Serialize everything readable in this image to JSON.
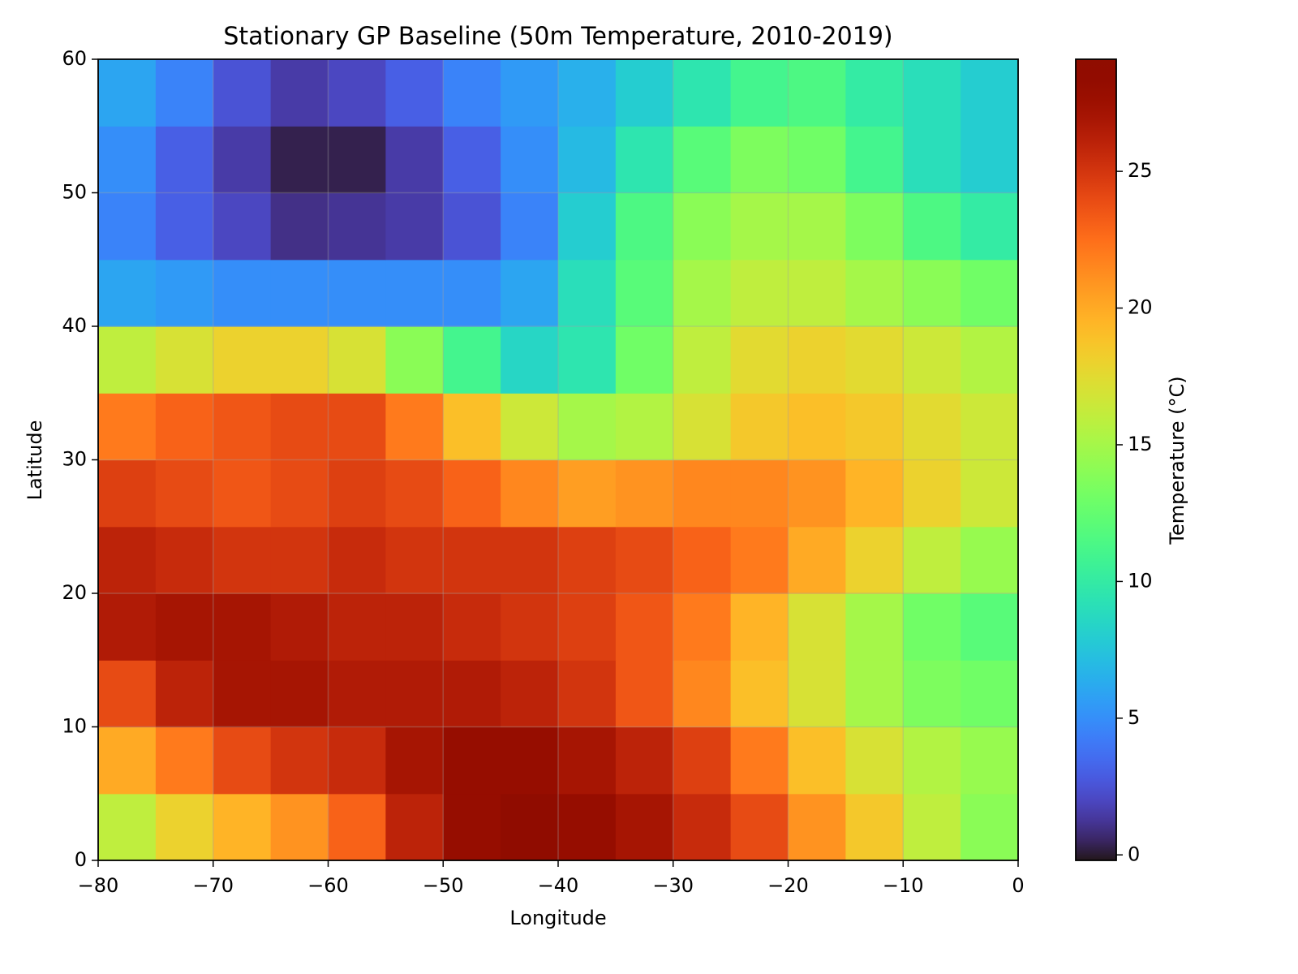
{
  "chart_data": {
    "type": "heatmap",
    "title": "Stationary GP Baseline (50m Temperature, 2010-2019)",
    "xlabel": "Longitude",
    "ylabel": "Latitude",
    "colorbar_label": "Temperature (°C)",
    "colormap": "turbo",
    "grid": true,
    "xlim": [
      -80,
      0
    ],
    "ylim": [
      0,
      60
    ],
    "zlim": [
      -0.2,
      29.1
    ],
    "xticks": [
      {
        "value": -80,
        "label": "−80"
      },
      {
        "value": -70,
        "label": "−70"
      },
      {
        "value": -60,
        "label": "−60"
      },
      {
        "value": -50,
        "label": "−50"
      },
      {
        "value": -40,
        "label": "−40"
      },
      {
        "value": -30,
        "label": "−30"
      },
      {
        "value": -20,
        "label": "−20"
      },
      {
        "value": -10,
        "label": "−10"
      },
      0
    ],
    "yticks": [
      0,
      10,
      20,
      30,
      40,
      50,
      60
    ],
    "zticks": [
      0,
      5,
      10,
      15,
      20,
      25
    ],
    "x": [
      -77.5,
      -72.5,
      -67.5,
      -62.5,
      -57.5,
      -52.5,
      -47.5,
      -42.5,
      -37.5,
      -32.5,
      -27.5,
      -22.5,
      -17.5,
      -12.5,
      -7.5,
      -2.5
    ],
    "y": [
      2.5,
      7.5,
      12.5,
      17.5,
      22.5,
      27.5,
      32.5,
      37.5,
      42.5,
      47.5,
      52.5,
      57.5
    ],
    "z": [
      [
        16,
        18,
        19.5,
        21,
        23,
        26,
        28,
        29,
        28,
        27,
        25.5,
        24,
        21,
        18.5,
        16,
        14
      ],
      [
        20,
        22,
        24,
        25,
        25.5,
        27,
        28,
        28,
        27,
        26,
        24.5,
        22,
        19,
        17,
        15.5,
        14.5
      ],
      [
        24,
        26,
        27,
        27,
        26.5,
        26.5,
        26.5,
        26,
        25,
        23.5,
        21.5,
        19,
        17,
        15,
        13.5,
        13
      ],
      [
        26.5,
        27,
        27,
        26.5,
        26,
        26,
        25.5,
        25,
        24.5,
        23.5,
        22,
        19.5,
        17,
        15,
        13,
        12
      ],
      [
        26,
        25.5,
        25,
        25,
        25.5,
        25,
        25,
        25,
        24.5,
        24,
        23,
        22,
        20,
        18,
        16,
        14.5
      ],
      [
        24.5,
        24,
        23.5,
        24,
        24.5,
        24,
        23,
        21.5,
        20.5,
        21,
        21.5,
        21.5,
        21,
        19.5,
        18,
        16.5
      ],
      [
        22,
        23,
        23.5,
        24,
        24,
        22,
        19,
        16.5,
        15,
        15.5,
        17,
        18.5,
        19,
        18.5,
        17.5,
        16.5
      ],
      [
        16,
        17,
        18,
        18,
        17,
        14,
        11,
        8.5,
        9.5,
        13,
        16,
        17.5,
        18,
        17.5,
        16.5,
        15.5
      ],
      [
        6,
        5.5,
        5,
        5,
        5,
        5,
        5,
        6,
        9,
        12,
        15,
        16,
        16,
        15,
        14,
        13
      ],
      [
        4.5,
        3,
        2,
        1,
        1.2,
        1.5,
        2.5,
        4.5,
        8,
        11.5,
        14,
        15,
        15,
        13.5,
        11.5,
        10
      ],
      [
        5,
        3,
        1.5,
        0.3,
        0.3,
        1.5,
        3,
        5,
        7,
        9.5,
        12,
        13.5,
        13,
        11,
        9,
        8
      ],
      [
        6,
        4.5,
        2.5,
        1.5,
        2,
        3,
        4.5,
        5.5,
        6.5,
        8,
        9.5,
        11,
        11.5,
        10,
        9,
        8
      ]
    ]
  }
}
